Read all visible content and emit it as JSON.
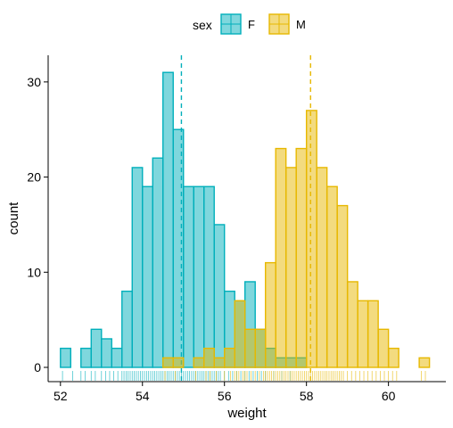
{
  "chart_data": {
    "type": "histogram",
    "title": "",
    "xlabel": "weight",
    "ylabel": "count",
    "xlim": [
      51.7,
      61.4
    ],
    "ylim": [
      -1.5,
      32.8
    ],
    "xticks": [
      52,
      54,
      56,
      58,
      60
    ],
    "yticks": [
      0,
      10,
      20,
      30
    ],
    "bin_width": 0.25,
    "grid": false,
    "legend": {
      "title": "sex",
      "placement": "top"
    },
    "series": [
      {
        "name": "F",
        "color": "#00AFBB",
        "mean": 54.95,
        "bins": [
          [
            52.0,
            2
          ],
          [
            52.25,
            0
          ],
          [
            52.5,
            2
          ],
          [
            52.75,
            4
          ],
          [
            53.0,
            3
          ],
          [
            53.25,
            2
          ],
          [
            53.5,
            8
          ],
          [
            53.75,
            21
          ],
          [
            54.0,
            19
          ],
          [
            54.25,
            22
          ],
          [
            54.5,
            31
          ],
          [
            54.75,
            25
          ],
          [
            55.0,
            19
          ],
          [
            55.25,
            19
          ],
          [
            55.5,
            19
          ],
          [
            55.75,
            15
          ],
          [
            56.0,
            8
          ],
          [
            56.25,
            7
          ],
          [
            56.5,
            9
          ],
          [
            56.75,
            4
          ],
          [
            57.0,
            2
          ],
          [
            57.25,
            1
          ],
          [
            57.5,
            1
          ],
          [
            57.75,
            1
          ]
        ],
        "rug": [
          52.05,
          52.3,
          52.5,
          52.6,
          52.75,
          52.85,
          53.0,
          53.1,
          53.2,
          53.3,
          53.4,
          53.5,
          53.55,
          53.6,
          53.65,
          53.7,
          53.75,
          53.8,
          53.85,
          53.9,
          53.95,
          54.0,
          54.05,
          54.1,
          54.15,
          54.2,
          54.25,
          54.3,
          54.35,
          54.4,
          54.45,
          54.5,
          54.55,
          54.6,
          54.65,
          54.7,
          54.75,
          54.8,
          54.85,
          54.9,
          54.95,
          55.0,
          55.05,
          55.1,
          55.15,
          55.2,
          55.25,
          55.3,
          55.35,
          55.4,
          55.45,
          55.5,
          55.55,
          55.6,
          55.65,
          55.7,
          55.75,
          55.8,
          55.85,
          55.9,
          56.0,
          56.1,
          56.2,
          56.3,
          56.4,
          56.5,
          56.6,
          56.7,
          56.8,
          56.9,
          57.0,
          57.2,
          57.4,
          57.6
        ]
      },
      {
        "name": "M",
        "color": "#E7B800",
        "mean": 58.1,
        "bins": [
          [
            54.5,
            1
          ],
          [
            54.75,
            1
          ],
          [
            55.0,
            0
          ],
          [
            55.25,
            1
          ],
          [
            55.5,
            2
          ],
          [
            55.75,
            1
          ],
          [
            56.0,
            2
          ],
          [
            56.25,
            7
          ],
          [
            56.5,
            4
          ],
          [
            56.75,
            4
          ],
          [
            57.0,
            11
          ],
          [
            57.25,
            23
          ],
          [
            57.5,
            21
          ],
          [
            57.75,
            23
          ],
          [
            58.0,
            27
          ],
          [
            58.25,
            21
          ],
          [
            58.5,
            19
          ],
          [
            58.75,
            17
          ],
          [
            59.0,
            9
          ],
          [
            59.25,
            7
          ],
          [
            59.5,
            7
          ],
          [
            59.75,
            4
          ],
          [
            60.0,
            2
          ],
          [
            60.25,
            0
          ],
          [
            60.5,
            0
          ],
          [
            60.75,
            1
          ]
        ],
        "rug": [
          54.55,
          54.8,
          55.3,
          55.55,
          55.65,
          55.8,
          56.0,
          56.15,
          56.25,
          56.3,
          56.35,
          56.45,
          56.5,
          56.55,
          56.65,
          56.75,
          56.85,
          56.95,
          57.0,
          57.05,
          57.1,
          57.15,
          57.2,
          57.25,
          57.3,
          57.35,
          57.4,
          57.45,
          57.5,
          57.55,
          57.6,
          57.65,
          57.7,
          57.75,
          57.8,
          57.85,
          57.9,
          57.95,
          58.0,
          58.05,
          58.1,
          58.15,
          58.2,
          58.25,
          58.3,
          58.35,
          58.4,
          58.45,
          58.5,
          58.55,
          58.6,
          58.65,
          58.7,
          58.75,
          58.8,
          58.85,
          58.9,
          59.0,
          59.1,
          59.2,
          59.3,
          59.4,
          59.5,
          59.6,
          59.7,
          59.8,
          59.9,
          60.0,
          60.1,
          60.2,
          60.8,
          60.9
        ]
      }
    ]
  }
}
